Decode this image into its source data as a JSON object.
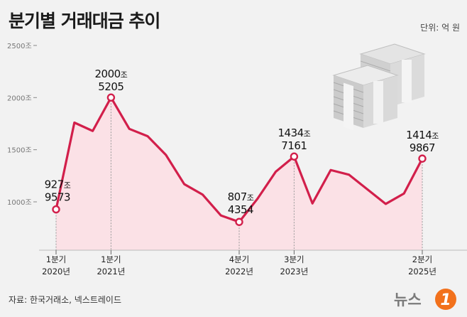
{
  "header": {
    "title": "분기별 거래대금 추이",
    "unit": "단위: 억 원"
  },
  "footer": {
    "source": "자료: 한국거래소, 넥스트레이드",
    "logo_text": "뉴스1"
  },
  "decoration": {
    "icon": "money-stack-icon"
  },
  "colors": {
    "line": "#d21f4b",
    "area": "#fbe1e6",
    "background": "#f2f2f2"
  },
  "chart_data": {
    "type": "area",
    "title": "분기별 거래대금 추이",
    "unit": "억 원",
    "ylim": [
      0,
      2500
    ],
    "yticks": [
      {
        "value": 1000,
        "label": "1000조"
      },
      {
        "value": 1500,
        "label": "1500조"
      },
      {
        "value": 2000,
        "label": "2000조"
      },
      {
        "value": 2500,
        "label": "2500조"
      }
    ],
    "values": [
      927.9573,
      1760,
      1680,
      2000.5205,
      1700,
      1630,
      1450,
      1170,
      1070,
      870,
      807.4354,
      1030,
      1290,
      1434.7161,
      985,
      1305,
      1260,
      1120,
      980,
      1080,
      1414.9867
    ],
    "x_labels": [
      {
        "index": 0,
        "line1": "1분기",
        "line2": "2020년"
      },
      {
        "index": 3,
        "line1": "1분기",
        "line2": "2021년"
      },
      {
        "index": 10,
        "line1": "4분기",
        "line2": "2022년"
      },
      {
        "index": 13,
        "line1": "3분기",
        "line2": "2023년"
      },
      {
        "index": 20,
        "line1": "2분기",
        "line2": "2025년"
      }
    ],
    "annotations": [
      {
        "index": 0,
        "major": "927",
        "unit": "조",
        "minor": "9573",
        "side": "left"
      },
      {
        "index": 3,
        "major": "2000",
        "unit": "조",
        "minor": "5205",
        "side": "top"
      },
      {
        "index": 10,
        "major": "807",
        "unit": "조",
        "minor": "4354",
        "side": "left"
      },
      {
        "index": 13,
        "major": "1434",
        "unit": "조",
        "minor": "7161",
        "side": "top"
      },
      {
        "index": 20,
        "major": "1414",
        "unit": "조",
        "minor": "9867",
        "side": "top"
      }
    ]
  }
}
